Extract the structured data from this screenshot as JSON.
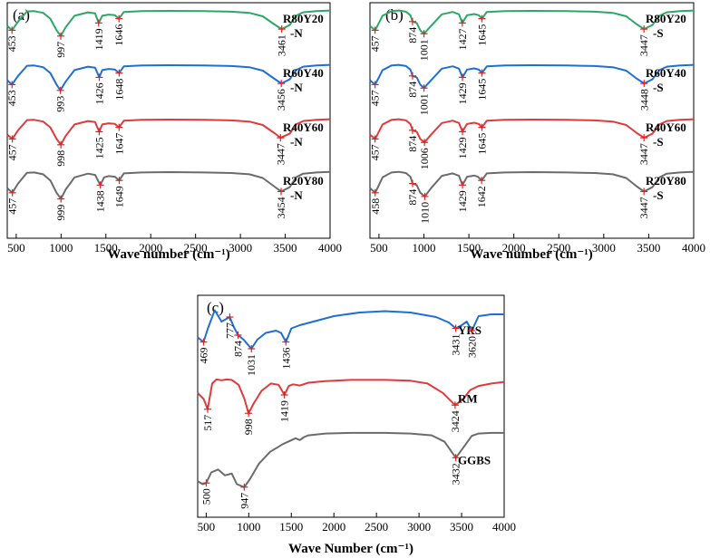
{
  "chart_data": [
    {
      "type": "line",
      "panel_label": "(a)",
      "xlabel": "Wave number (cm⁻¹)",
      "xlim": [
        400,
        4000
      ],
      "x_ticks": [
        500,
        1000,
        1500,
        2000,
        2500,
        3000,
        3500,
        4000
      ],
      "series": [
        {
          "name": "R80Y20\n-N",
          "color": "#2ca866",
          "x": [
            400,
            453,
            520,
            620,
            700,
            800,
            880,
            950,
            997,
            1050,
            1150,
            1300,
            1380,
            1419,
            1460,
            1530,
            1600,
            1646,
            1700,
            1900,
            2200,
            2600,
            2900,
            3100,
            3250,
            3380,
            3461,
            3550,
            3620,
            3700,
            3850,
            4000
          ],
          "y": [
            0.45,
            0.3,
            0.6,
            0.95,
            0.96,
            0.9,
            0.7,
            0.3,
            0.1,
            0.4,
            0.8,
            0.92,
            0.88,
            0.55,
            0.8,
            0.84,
            0.82,
            0.7,
            0.93,
            0.96,
            0.97,
            0.96,
            0.94,
            0.9,
            0.78,
            0.5,
            0.34,
            0.48,
            0.8,
            0.92,
            0.96,
            0.98
          ]
        },
        {
          "name": "R60Y40\n-N",
          "color": "#1f6fd1",
          "x": [
            400,
            453,
            520,
            620,
            700,
            800,
            880,
            950,
            993,
            1050,
            1150,
            1300,
            1380,
            1426,
            1460,
            1530,
            1600,
            1648,
            1700,
            1900,
            2200,
            2600,
            2900,
            3100,
            3250,
            3380,
            3456,
            3550,
            3620,
            3700,
            3850,
            4000
          ],
          "y": [
            0.45,
            0.3,
            0.6,
            0.95,
            0.96,
            0.9,
            0.7,
            0.3,
            0.1,
            0.4,
            0.8,
            0.92,
            0.88,
            0.55,
            0.8,
            0.84,
            0.82,
            0.7,
            0.93,
            0.96,
            0.97,
            0.96,
            0.94,
            0.9,
            0.78,
            0.5,
            0.34,
            0.48,
            0.8,
            0.92,
            0.96,
            0.98
          ]
        },
        {
          "name": "R40Y60\n-N",
          "color": "#e03a3a",
          "x": [
            400,
            457,
            520,
            620,
            700,
            800,
            880,
            950,
            998,
            1050,
            1150,
            1300,
            1380,
            1425,
            1460,
            1530,
            1600,
            1647,
            1700,
            1900,
            2200,
            2600,
            2900,
            3100,
            3250,
            3380,
            3447,
            3550,
            3620,
            3700,
            3850,
            4000
          ],
          "y": [
            0.45,
            0.3,
            0.6,
            0.95,
            0.96,
            0.9,
            0.7,
            0.3,
            0.1,
            0.4,
            0.8,
            0.92,
            0.88,
            0.55,
            0.8,
            0.84,
            0.82,
            0.7,
            0.93,
            0.96,
            0.97,
            0.96,
            0.94,
            0.9,
            0.78,
            0.5,
            0.34,
            0.48,
            0.8,
            0.92,
            0.96,
            0.98
          ]
        },
        {
          "name": "R20Y80\n-N",
          "color": "#6b6b6b",
          "x": [
            400,
            457,
            520,
            620,
            700,
            800,
            880,
            950,
            999,
            1050,
            1150,
            1300,
            1380,
            1438,
            1480,
            1530,
            1600,
            1649,
            1700,
            1900,
            2200,
            2600,
            2900,
            3100,
            3250,
            3380,
            3454,
            3550,
            3620,
            3700,
            3850,
            4000
          ],
          "y": [
            0.45,
            0.3,
            0.6,
            0.95,
            0.96,
            0.9,
            0.7,
            0.3,
            0.1,
            0.4,
            0.8,
            0.92,
            0.88,
            0.55,
            0.8,
            0.84,
            0.82,
            0.7,
            0.93,
            0.96,
            0.97,
            0.96,
            0.94,
            0.9,
            0.78,
            0.5,
            0.34,
            0.48,
            0.8,
            0.92,
            0.96,
            0.98
          ]
        }
      ],
      "peaks": [
        {
          "series": 0,
          "labels": [
            "453",
            "997",
            "1419",
            "1646",
            "3461"
          ]
        },
        {
          "series": 1,
          "labels": [
            "453",
            "993",
            "1426",
            "1648",
            "3456"
          ]
        },
        {
          "series": 2,
          "labels": [
            "457",
            "998",
            "1425",
            "1647",
            "3447"
          ]
        },
        {
          "series": 3,
          "labels": [
            "457",
            "999",
            "1438",
            "1649",
            "3454"
          ]
        }
      ]
    },
    {
      "type": "line",
      "panel_label": "(b)",
      "xlabel": "Wave number (cm⁻¹)",
      "xlim": [
        400,
        4000
      ],
      "x_ticks": [
        500,
        1000,
        1500,
        2000,
        2500,
        3000,
        3500,
        4000
      ],
      "series": [
        {
          "name": "R80Y20\n-S",
          "color": "#2ca866",
          "x": [
            400,
            457,
            540,
            640,
            720,
            800,
            850,
            874,
            920,
            960,
            1001,
            1080,
            1200,
            1320,
            1390,
            1427,
            1480,
            1560,
            1610,
            1645,
            1700,
            1900,
            2200,
            2600,
            2900,
            3100,
            3250,
            3370,
            3447,
            3540,
            3620,
            3700,
            3850,
            4000
          ],
          "y": [
            0.45,
            0.3,
            0.8,
            0.96,
            0.98,
            0.94,
            0.82,
            0.6,
            0.55,
            0.3,
            0.18,
            0.45,
            0.85,
            0.93,
            0.85,
            0.55,
            0.82,
            0.86,
            0.82,
            0.7,
            0.93,
            0.96,
            0.97,
            0.96,
            0.94,
            0.9,
            0.78,
            0.5,
            0.34,
            0.48,
            0.8,
            0.92,
            0.96,
            0.98
          ]
        },
        {
          "name": "R60Y40\n-S",
          "color": "#1f6fd1",
          "x": [
            400,
            457,
            540,
            640,
            720,
            800,
            850,
            874,
            920,
            960,
            1001,
            1080,
            1200,
            1320,
            1390,
            1429,
            1480,
            1560,
            1610,
            1645,
            1700,
            1900,
            2200,
            2600,
            2900,
            3100,
            3250,
            3370,
            3448,
            3540,
            3620,
            3700,
            3850,
            4000
          ],
          "y": [
            0.45,
            0.3,
            0.8,
            0.96,
            0.98,
            0.94,
            0.82,
            0.6,
            0.55,
            0.3,
            0.18,
            0.45,
            0.85,
            0.93,
            0.85,
            0.55,
            0.82,
            0.86,
            0.82,
            0.7,
            0.93,
            0.96,
            0.97,
            0.96,
            0.94,
            0.9,
            0.78,
            0.5,
            0.34,
            0.48,
            0.8,
            0.92,
            0.96,
            0.98
          ]
        },
        {
          "name": "R40Y60\n-S",
          "color": "#e03a3a",
          "x": [
            400,
            457,
            540,
            640,
            720,
            800,
            850,
            874,
            920,
            960,
            1006,
            1080,
            1200,
            1320,
            1390,
            1429,
            1480,
            1560,
            1610,
            1645,
            1700,
            1900,
            2200,
            2600,
            2900,
            3100,
            3250,
            3370,
            3447,
            3540,
            3620,
            3700,
            3850,
            4000
          ],
          "y": [
            0.45,
            0.3,
            0.8,
            0.96,
            0.98,
            0.94,
            0.82,
            0.6,
            0.55,
            0.3,
            0.18,
            0.45,
            0.85,
            0.93,
            0.85,
            0.55,
            0.82,
            0.86,
            0.82,
            0.7,
            0.93,
            0.96,
            0.97,
            0.96,
            0.94,
            0.9,
            0.78,
            0.5,
            0.34,
            0.48,
            0.8,
            0.92,
            0.96,
            0.98
          ]
        },
        {
          "name": "R20Y80\n-S",
          "color": "#6b6b6b",
          "x": [
            400,
            458,
            540,
            640,
            720,
            800,
            850,
            874,
            920,
            960,
            1010,
            1080,
            1200,
            1320,
            1390,
            1429,
            1480,
            1560,
            1600,
            1642,
            1700,
            1900,
            2200,
            2600,
            2900,
            3100,
            3250,
            3370,
            3447,
            3540,
            3620,
            3700,
            3850,
            4000
          ],
          "y": [
            0.45,
            0.3,
            0.8,
            0.96,
            0.98,
            0.94,
            0.82,
            0.6,
            0.55,
            0.3,
            0.18,
            0.45,
            0.85,
            0.93,
            0.85,
            0.55,
            0.82,
            0.86,
            0.82,
            0.7,
            0.93,
            0.96,
            0.97,
            0.96,
            0.94,
            0.9,
            0.78,
            0.5,
            0.34,
            0.48,
            0.8,
            0.92,
            0.96,
            0.98
          ]
        }
      ],
      "peaks": [
        {
          "series": 0,
          "labels": [
            "457",
            "874",
            "1001",
            "1427",
            "1645",
            "3447"
          ]
        },
        {
          "series": 1,
          "labels": [
            "457",
            "874",
            "1001",
            "1429",
            "1645",
            "3448"
          ]
        },
        {
          "series": 2,
          "labels": [
            "457",
            "874",
            "1006",
            "1429",
            "1645",
            "3447"
          ]
        },
        {
          "series": 3,
          "labels": [
            "458",
            "874",
            "1010",
            "1429",
            "1642",
            "3447"
          ]
        }
      ]
    },
    {
      "type": "line",
      "panel_label": "(c)",
      "xlabel": "Wave Number (cm⁻¹)",
      "xlim": [
        400,
        4000
      ],
      "x_ticks": [
        500,
        1000,
        1500,
        2000,
        2500,
        3000,
        3500,
        4000
      ],
      "series": [
        {
          "name": "YRS",
          "color": "#1f6fd1",
          "x": [
            400,
            469,
            520,
            600,
            680,
            777,
            820,
            874,
            940,
            1031,
            1100,
            1200,
            1320,
            1380,
            1436,
            1500,
            1600,
            1800,
            2000,
            2300,
            2600,
            2900,
            3200,
            3350,
            3431,
            3500,
            3560,
            3620,
            3700,
            3850,
            4000
          ],
          "y": [
            0.35,
            0.25,
            0.55,
            0.95,
            0.7,
            0.8,
            0.6,
            0.4,
            0.3,
            0.1,
            0.3,
            0.45,
            0.5,
            0.45,
            0.25,
            0.55,
            0.62,
            0.72,
            0.82,
            0.9,
            0.93,
            0.9,
            0.8,
            0.68,
            0.55,
            0.62,
            0.7,
            0.5,
            0.82,
            0.86,
            0.86
          ]
        },
        {
          "name": "RM",
          "color": "#e03a3a",
          "x": [
            400,
            470,
            517,
            570,
            620,
            680,
            740,
            800,
            880,
            950,
            998,
            1060,
            1150,
            1260,
            1350,
            1419,
            1470,
            1520,
            1600,
            1700,
            1900,
            2200,
            2600,
            2900,
            3100,
            3280,
            3424,
            3520,
            3600,
            3700,
            3850,
            4000
          ],
          "y": [
            0.65,
            0.5,
            0.25,
            0.88,
            0.98,
            0.96,
            0.98,
            0.97,
            0.85,
            0.5,
            0.15,
            0.4,
            0.7,
            0.88,
            0.85,
            0.6,
            0.82,
            0.86,
            0.83,
            0.9,
            0.94,
            0.97,
            0.97,
            0.95,
            0.88,
            0.65,
            0.35,
            0.5,
            0.72,
            0.82,
            0.88,
            0.92
          ]
        },
        {
          "name": "GGBS",
          "color": "#6b6b6b",
          "x": [
            400,
            460,
            500,
            560,
            640,
            720,
            800,
            860,
            947,
            1020,
            1120,
            1250,
            1400,
            1550,
            1600,
            1650,
            1700,
            1900,
            2200,
            2600,
            2900,
            3150,
            3300,
            3432,
            3520,
            3620,
            3700,
            3850,
            4000
          ],
          "y": [
            0.15,
            0.1,
            0.12,
            0.3,
            0.35,
            0.25,
            0.28,
            0.1,
            0.05,
            0.2,
            0.45,
            0.65,
            0.78,
            0.88,
            0.85,
            0.9,
            0.93,
            0.96,
            0.97,
            0.97,
            0.96,
            0.93,
            0.82,
            0.55,
            0.72,
            0.92,
            0.96,
            0.97,
            0.97
          ]
        }
      ],
      "peaks": [
        {
          "series": 0,
          "labels": [
            "469",
            "777",
            "874",
            "1031",
            "1436",
            "3431",
            "3620"
          ]
        },
        {
          "series": 1,
          "labels": [
            "517",
            "998",
            "1419",
            "3424"
          ]
        },
        {
          "series": 2,
          "labels": [
            "500",
            "947",
            "3432"
          ]
        }
      ]
    }
  ]
}
